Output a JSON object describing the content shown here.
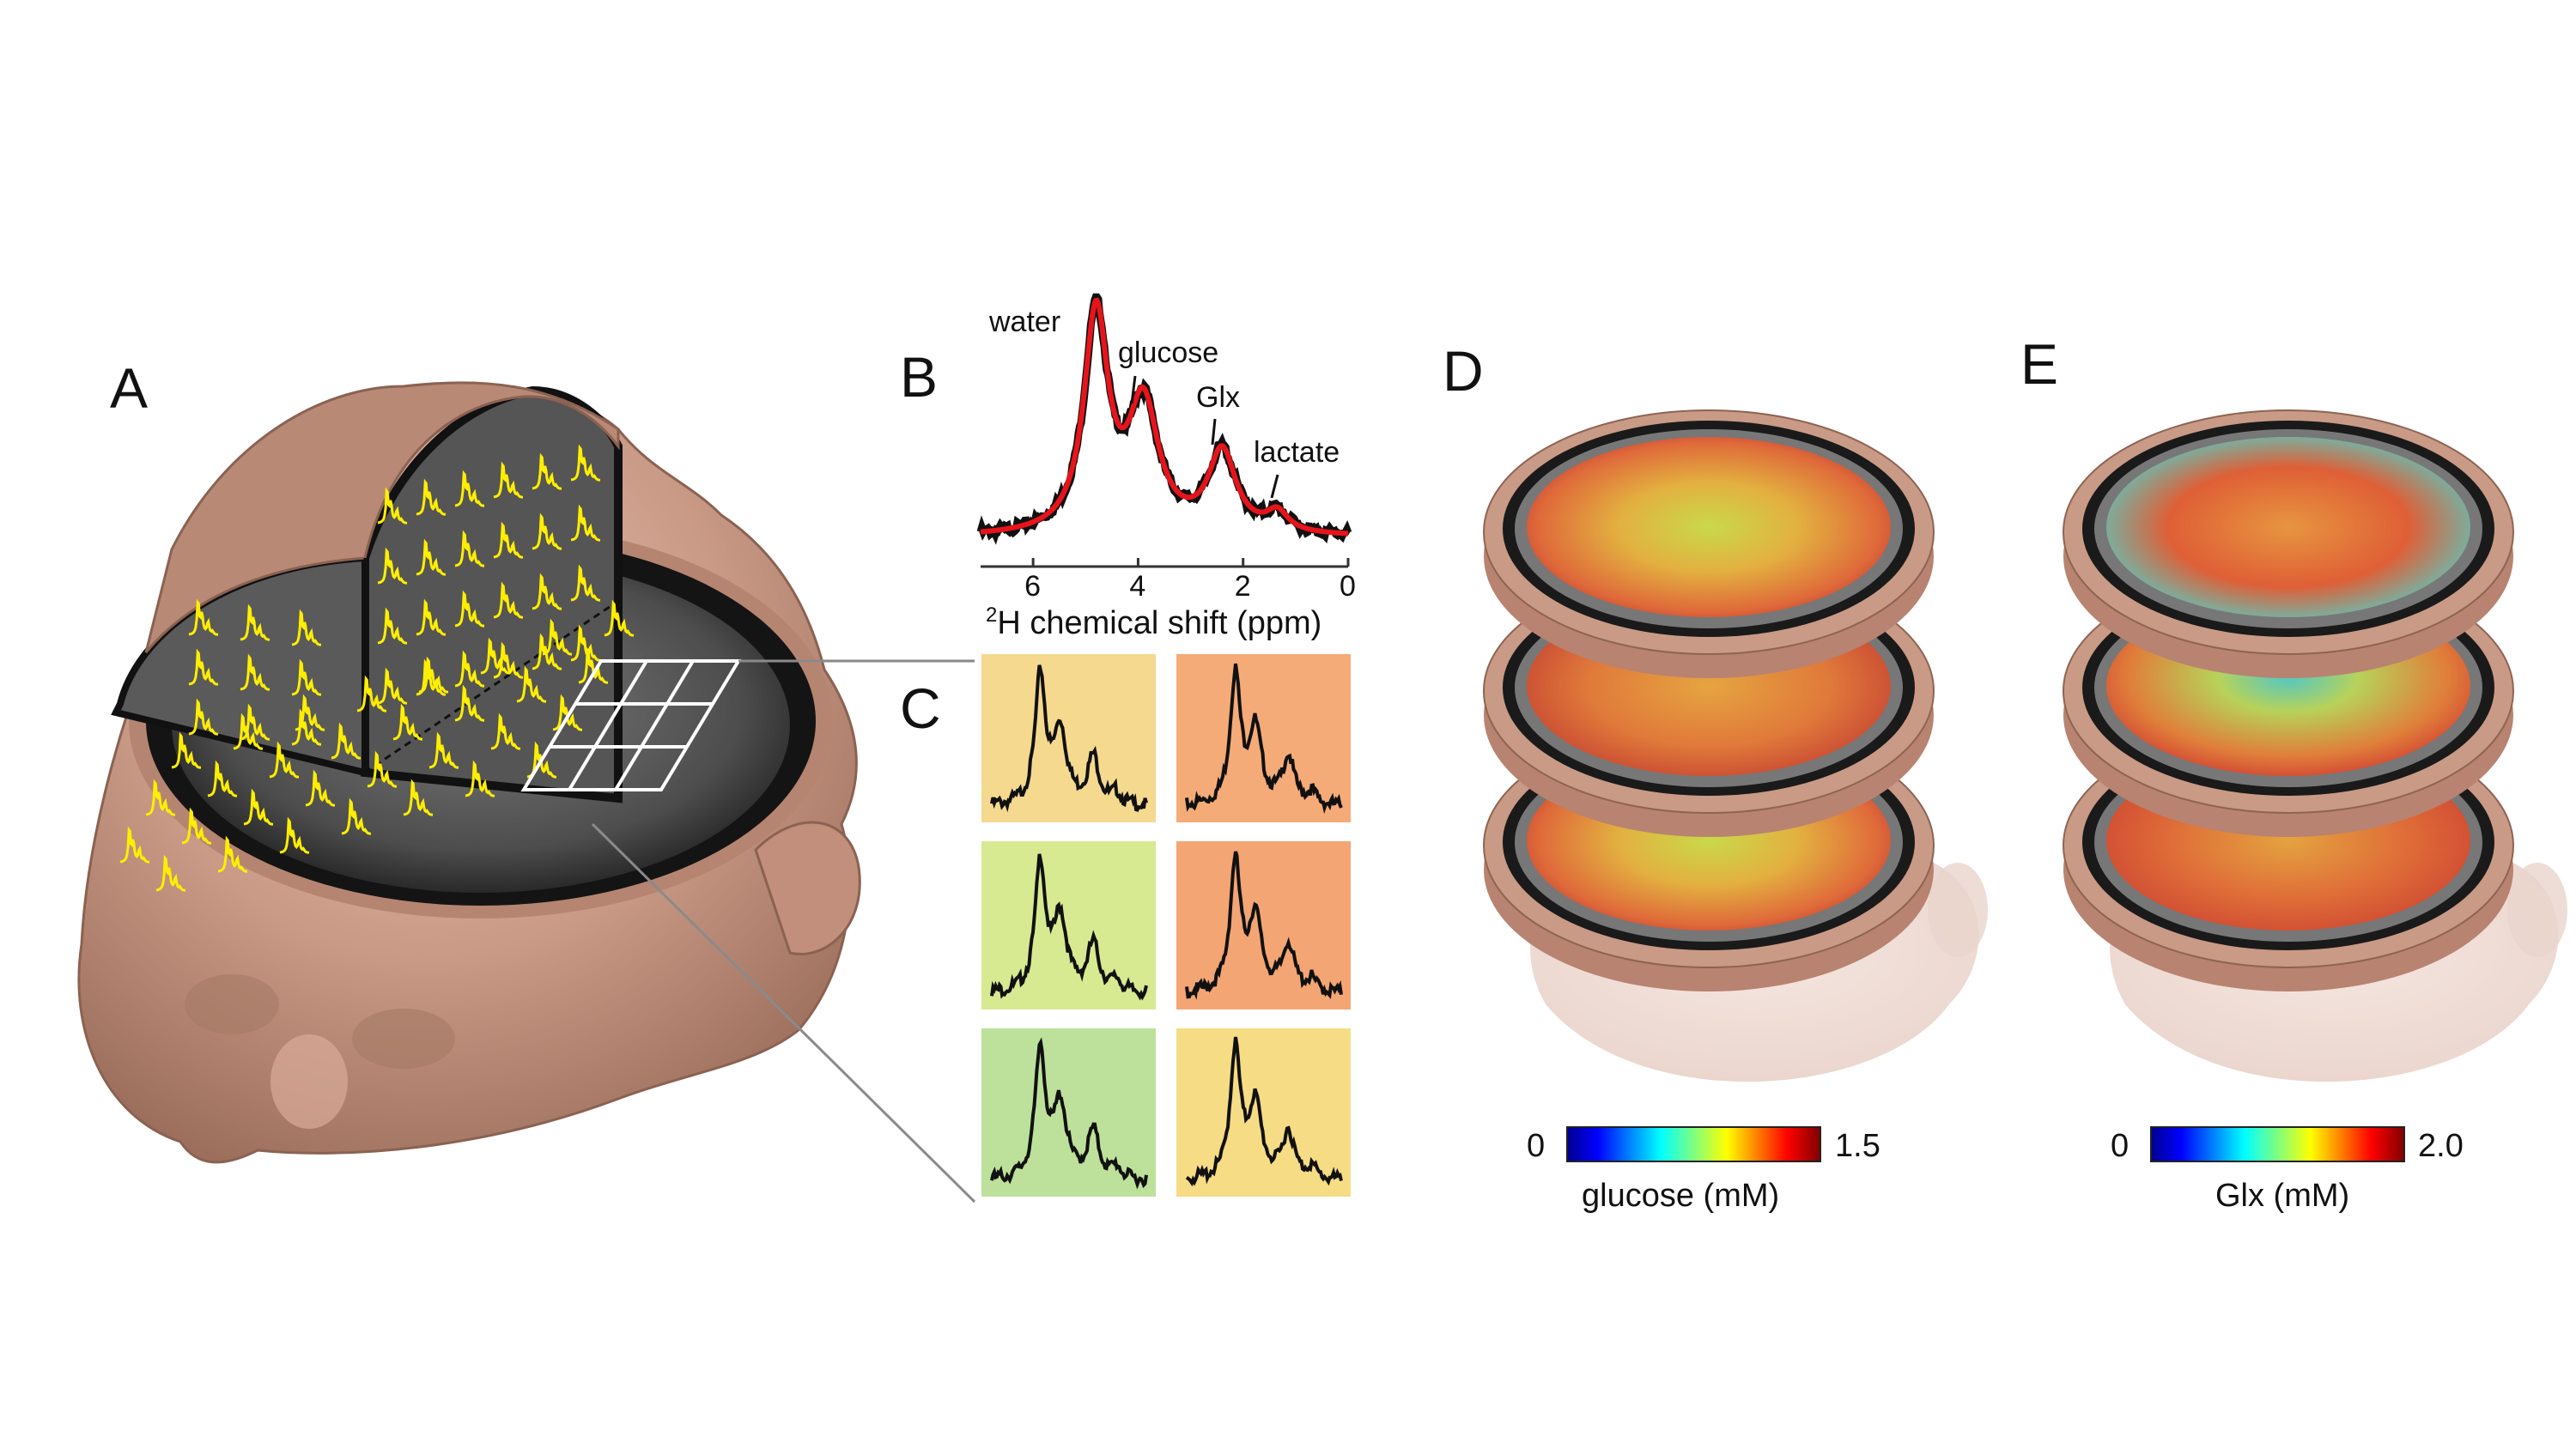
{
  "panels": {
    "a": {
      "letter": "A"
    },
    "b": {
      "letter": "B"
    },
    "c": {
      "letter": "C"
    },
    "d": {
      "letter": "D"
    },
    "e": {
      "letter": "E"
    }
  },
  "spectrum_b": {
    "peaks": [
      "water",
      "glucose",
      "Glx",
      "lactate"
    ],
    "x_ticks": [
      "6",
      "4",
      "2",
      "0"
    ],
    "xlabel_sup": "2",
    "xlabel_text": "H chemical shift (ppm)",
    "colors": {
      "measured": "#111111",
      "fit": "#e8141b"
    }
  },
  "voxel_tiles": {
    "backgrounds": [
      "#f5d98f",
      "#f5ab78",
      "#d7ea91",
      "#f3a574",
      "#bde19a",
      "#f6dc84"
    ]
  },
  "colorbar_d": {
    "min": "0",
    "max": "1.5",
    "label": "glucose (mM)"
  },
  "colorbar_e": {
    "min": "0",
    "max": "2.0",
    "label": "Glx (mM)"
  },
  "colors": {
    "skin": "#c99a86",
    "brain_gray": "#4a4a4a",
    "spectra_overlay": "#ffee00",
    "grid": "#ffffff",
    "connector": "#8a8a8a"
  }
}
